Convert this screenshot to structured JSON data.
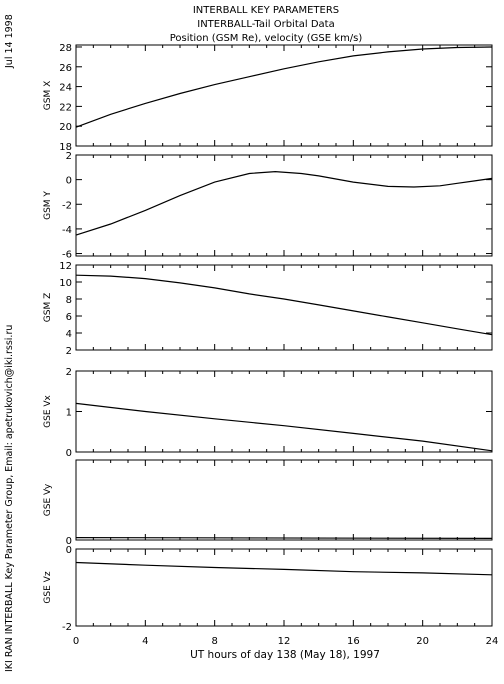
{
  "side_left_text": "IKI RAN INTERBALL Key Parameter Group, Email: apetrukovich@iki.rssi.ru",
  "date_text": "Jul 14 1998",
  "title_lines": [
    "INTERBALL KEY PARAMETERS",
    "INTERBALL-Tail Orbital Data",
    "Position (GSM Re), velocity (GSE km/s)"
  ],
  "chart_data": {
    "type": "line",
    "xlabel": "UT hours of day 138 (May 18), 1997",
    "xlim": [
      0,
      24
    ],
    "xticks": [
      0,
      4,
      8,
      12,
      16,
      20,
      24
    ],
    "panels": [
      {
        "ylabel": "GSM X",
        "ylim": [
          18,
          28.2
        ],
        "yticks": [
          18,
          20,
          22,
          24,
          26,
          28
        ],
        "series": [
          {
            "x": [
              0,
              2,
              4,
              6,
              8,
              10,
              12,
              14,
              16,
              18,
              20,
              22,
              24
            ],
            "y": [
              19.9,
              21.2,
              22.3,
              23.3,
              24.2,
              25.0,
              25.8,
              26.5,
              27.1,
              27.5,
              27.8,
              27.95,
              28.0
            ]
          }
        ]
      },
      {
        "ylabel": "GSM Y",
        "ylim": [
          -6.2,
          2
        ],
        "yticks": [
          -6,
          -4,
          -2,
          0,
          2
        ],
        "series": [
          {
            "x": [
              0,
              2,
              4,
              6,
              8,
              10,
              11.5,
              13,
              14,
              16,
              18,
              19.5,
              21,
              22,
              23,
              24
            ],
            "y": [
              -4.5,
              -3.6,
              -2.5,
              -1.3,
              -0.2,
              0.5,
              0.65,
              0.5,
              0.3,
              -0.2,
              -0.55,
              -0.6,
              -0.5,
              -0.3,
              -0.1,
              0.1
            ]
          }
        ]
      },
      {
        "ylabel": "GSM Z",
        "ylim": [
          2,
          12
        ],
        "yticks": [
          2,
          4,
          6,
          8,
          10,
          12
        ],
        "series": [
          {
            "x": [
              0,
              2,
              4,
              6,
              8,
              10,
              12,
              14,
              16,
              18,
              20,
              22,
              24
            ],
            "y": [
              10.8,
              10.7,
              10.4,
              9.9,
              9.3,
              8.6,
              8.0,
              7.3,
              6.6,
              5.9,
              5.2,
              4.5,
              3.8
            ]
          }
        ]
      },
      {
        "ylabel": "GSE Vx",
        "ylim": [
          0,
          2
        ],
        "yticks": [
          0,
          1,
          2
        ],
        "series": [
          {
            "x": [
              0,
              4,
              8,
              12,
              16,
              20,
              24
            ],
            "y": [
              1.2,
              1.0,
              0.82,
              0.65,
              0.46,
              0.27,
              0.03
            ]
          }
        ]
      },
      {
        "ylabel": "GSE Vy",
        "ylim": [
          0,
          1
        ],
        "yticks": [
          0
        ],
        "series": [
          {
            "x": [
              0,
              24
            ],
            "y": [
              0.03,
              0.02
            ]
          }
        ]
      },
      {
        "ylabel": "GSE Vz",
        "ylim": [
          -2,
          0
        ],
        "yticks": [
          -2,
          0
        ],
        "series": [
          {
            "x": [
              0,
              4,
              8,
              12,
              16,
              20,
              24
            ],
            "y": [
              -0.35,
              -0.42,
              -0.48,
              -0.53,
              -0.59,
              -0.62,
              -0.67
            ]
          }
        ]
      }
    ]
  }
}
